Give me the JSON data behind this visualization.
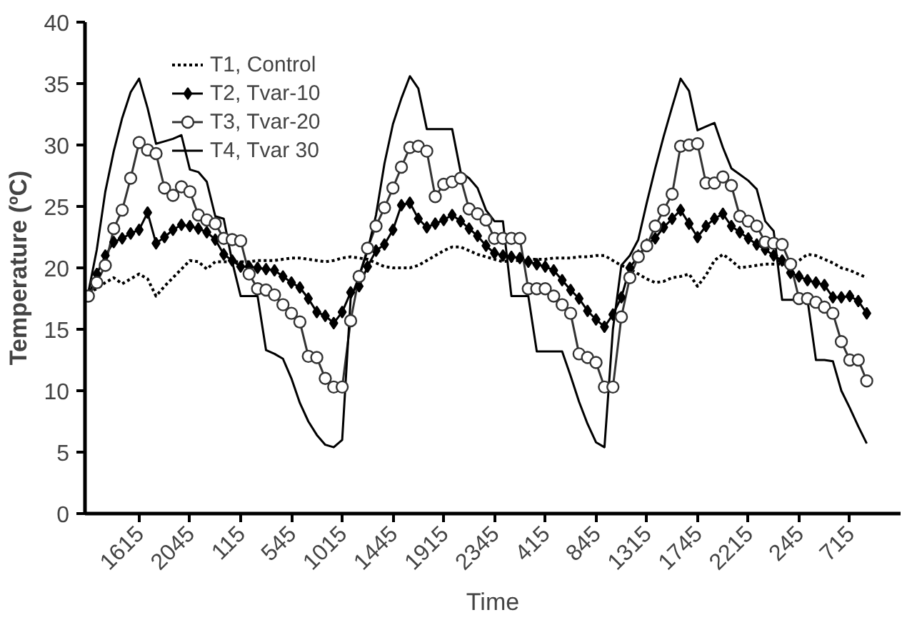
{
  "chart_data": {
    "type": "line",
    "xlabel": "Time",
    "ylabel": "Temperature (ºC)",
    "categories": [
      null,
      null,
      null,
      null,
      null,
      null,
      "1615",
      null,
      null,
      null,
      null,
      null,
      "2045",
      null,
      null,
      null,
      null,
      null,
      "115",
      null,
      null,
      null,
      null,
      null,
      "545",
      null,
      null,
      null,
      null,
      null,
      "1015",
      null,
      null,
      null,
      null,
      null,
      "1445",
      null,
      null,
      null,
      null,
      null,
      "1915",
      null,
      null,
      null,
      null,
      null,
      "2345",
      null,
      null,
      null,
      null,
      null,
      "415",
      null,
      null,
      null,
      null,
      null,
      "845",
      null,
      null,
      null,
      null,
      null,
      "1315",
      null,
      null,
      null,
      null,
      null,
      "1745",
      null,
      null,
      null,
      null,
      null,
      "2215",
      null,
      null,
      null,
      null,
      null,
      "245",
      null,
      null,
      null,
      null,
      null,
      "715",
      null,
      null
    ],
    "ylim": [
      0,
      40
    ],
    "yticks": [
      0,
      5,
      10,
      15,
      20,
      25,
      30,
      35,
      40
    ],
    "grid": false,
    "legend": "top left",
    "series": [
      {
        "name": "T1, Control",
        "color": "#000000",
        "marker": "none",
        "line_style": "dotted",
        "values": [
          18.0,
          18.3,
          18.8,
          19.2,
          18.7,
          19.1,
          19.5,
          19.1,
          17.7,
          18.5,
          19.2,
          19.9,
          20.6,
          20.5,
          19.9,
          20.5,
          20.5,
          20.5,
          20.5,
          20.5,
          20.6,
          20.6,
          20.6,
          20.7,
          20.8,
          20.8,
          20.7,
          20.6,
          20.5,
          20.6,
          20.8,
          20.9,
          20.8,
          20.7,
          20.4,
          20.1,
          20.0,
          20.0,
          20.0,
          20.2,
          20.6,
          21.0,
          21.4,
          21.7,
          21.7,
          21.4,
          21.1,
          20.9,
          20.7,
          20.5,
          20.6,
          20.6,
          20.7,
          20.7,
          20.7,
          20.8,
          20.8,
          20.8,
          20.9,
          20.9,
          21.0,
          21.0,
          20.6,
          20.2,
          19.9,
          19.5,
          19.1,
          18.8,
          18.9,
          19.2,
          19.3,
          19.5,
          18.5,
          19.4,
          20.6,
          21.1,
          20.6,
          20.0,
          20.1,
          20.2,
          20.3,
          20.3,
          20.3,
          20.3,
          20.6,
          21.1,
          21.0,
          20.7,
          20.4,
          20.0,
          19.8,
          19.5,
          19.2
        ]
      },
      {
        "name": "T2, Tvar-10",
        "color": "#000000",
        "marker": "diamond",
        "line_style": "solid",
        "values": [
          17.7,
          19.5,
          21.0,
          22.1,
          22.4,
          22.8,
          23.1,
          24.5,
          22.0,
          22.5,
          23.1,
          23.5,
          23.4,
          23.2,
          22.9,
          22.3,
          21.1,
          20.6,
          20.1,
          20.1,
          20.0,
          19.9,
          19.8,
          19.3,
          18.8,
          18.4,
          17.5,
          16.4,
          16.1,
          15.5,
          16.4,
          18.0,
          18.5,
          20.1,
          21.4,
          21.9,
          23.1,
          25.1,
          25.3,
          24.0,
          23.3,
          23.6,
          23.9,
          24.3,
          23.8,
          23.2,
          22.6,
          21.8,
          21.2,
          21.0,
          20.9,
          20.8,
          20.5,
          20.3,
          20.1,
          19.8,
          19.0,
          18.2,
          17.5,
          16.5,
          15.8,
          15.2,
          16.2,
          17.6,
          20.0,
          21.0,
          21.9,
          22.4,
          23.3,
          24.0,
          24.7,
          23.6,
          22.5,
          23.4,
          24.0,
          24.4,
          23.4,
          22.9,
          22.4,
          21.9,
          21.5,
          21.0,
          20.6,
          19.6,
          19.3,
          19.0,
          18.8,
          18.6,
          17.6,
          17.6,
          17.7,
          17.3,
          16.3
        ]
      },
      {
        "name": "T3, Tvar-20",
        "color": "#333333",
        "marker": "circle",
        "line_style": "solid",
        "values": [
          17.7,
          18.8,
          20.2,
          23.2,
          24.7,
          27.3,
          30.2,
          29.6,
          29.3,
          26.5,
          25.9,
          26.6,
          26.2,
          24.3,
          23.9,
          23.6,
          22.4,
          22.3,
          22.2,
          19.5,
          18.3,
          18.2,
          17.8,
          17.0,
          16.3,
          15.6,
          12.8,
          12.7,
          11.0,
          10.3,
          10.3,
          15.7,
          19.3,
          21.6,
          23.4,
          24.9,
          26.5,
          28.2,
          29.8,
          29.9,
          29.5,
          25.8,
          26.8,
          27.0,
          27.3,
          24.8,
          24.4,
          23.9,
          22.4,
          22.4,
          22.4,
          22.4,
          18.3,
          18.3,
          18.3,
          17.7,
          17.0,
          16.3,
          13.0,
          12.7,
          12.3,
          10.3,
          10.3,
          16.0,
          19.2,
          20.9,
          21.8,
          23.4,
          24.7,
          26.0,
          29.9,
          30.0,
          30.1,
          26.9,
          26.9,
          27.4,
          26.7,
          24.2,
          23.8,
          23.4,
          22.1,
          22.0,
          21.9,
          20.3,
          17.5,
          17.5,
          17.2,
          16.8,
          16.3,
          14.0,
          12.5,
          12.5,
          10.8
        ]
      },
      {
        "name": "T4, Tvar 30",
        "color": "#000000",
        "marker": "none",
        "line_style": "solid",
        "values": [
          18.0,
          21.5,
          26.2,
          29.5,
          32.2,
          34.3,
          35.4,
          33.0,
          30.1,
          30.3,
          30.5,
          30.8,
          28.0,
          27.8,
          27.0,
          24.2,
          24.0,
          20.5,
          17.7,
          17.7,
          17.7,
          13.3,
          13.0,
          12.6,
          11.0,
          9.0,
          7.5,
          6.4,
          5.6,
          5.4,
          6.0,
          17.5,
          19.3,
          21.4,
          24.3,
          28.5,
          31.7,
          33.8,
          35.6,
          34.6,
          31.3,
          31.3,
          31.3,
          31.3,
          27.8,
          27.3,
          26.5,
          24.7,
          23.8,
          23.8,
          17.7,
          17.7,
          17.7,
          13.2,
          13.2,
          13.2,
          13.2,
          11.2,
          9.1,
          7.3,
          5.8,
          5.4,
          15.0,
          20.2,
          21.0,
          22.3,
          25.3,
          28.1,
          30.7,
          33.1,
          35.4,
          34.4,
          31.2,
          31.5,
          31.8,
          29.8,
          28.1,
          27.6,
          27.1,
          26.4,
          23.8,
          23.0,
          17.4,
          17.4,
          17.4,
          17.4,
          12.5,
          12.5,
          12.4,
          10.0,
          8.6,
          7.1,
          5.7
        ]
      }
    ]
  }
}
